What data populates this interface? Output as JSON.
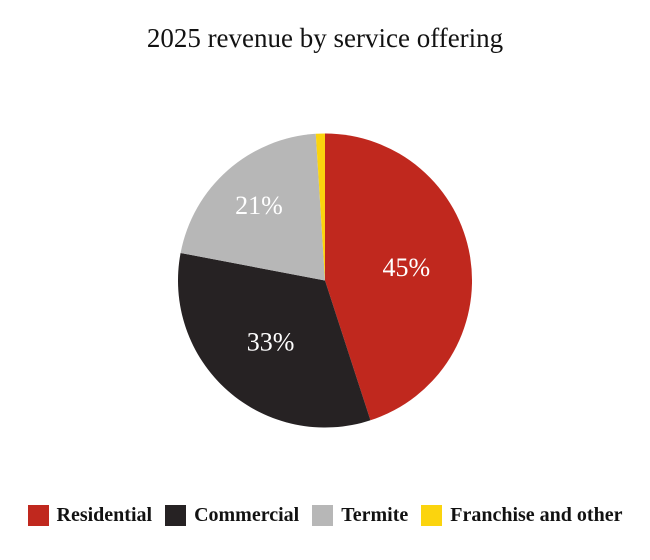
{
  "chart_data": {
    "type": "pie",
    "title": "2025 revenue by service offering",
    "slices": [
      {
        "label": "Residential",
        "value": 45,
        "display": "45%",
        "color": "#C0281E"
      },
      {
        "label": "Commercial",
        "value": 33,
        "display": "33%",
        "color": "#262223"
      },
      {
        "label": "Termite",
        "value": 21,
        "display": "21%",
        "color": "#B7B7B7"
      },
      {
        "label": "Franchise and other",
        "value": 1,
        "display": "",
        "color": "#FBD40E"
      }
    ],
    "start_angle_deg": 0,
    "direction": "clockwise",
    "legend_position": "bottom",
    "value_label_color": "#ffffff",
    "title_color": "#121212",
    "background_color": "#ffffff"
  }
}
